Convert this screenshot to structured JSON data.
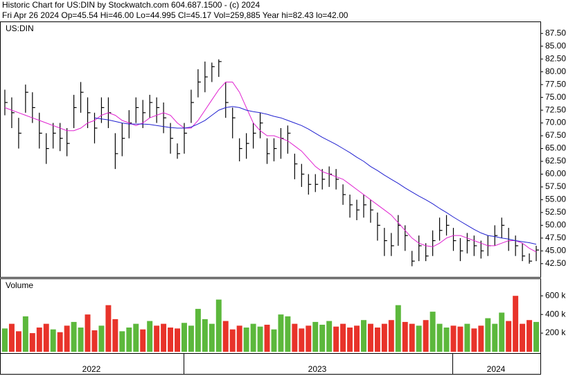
{
  "header": {
    "title": "Historic Chart for US:DIN by Stockwatch.com 604.687.1500 - (c) 2024",
    "quote": "Fri Apr 26 2024   Op=45.54  Hi=46.00  Lo=44.995  Cl=45.17  Vol=259,885  Year hi=82.43  lo=42.00"
  },
  "time_axis": {
    "labels": [
      "2022",
      "2023",
      "2024"
    ]
  },
  "chart_data": [
    {
      "type": "ohlc",
      "title": "US:DIN",
      "color": "#000000",
      "high": [
        76.5,
        75,
        71,
        77.5,
        76,
        72,
        68,
        70,
        70,
        69,
        75.5,
        78,
        75,
        72,
        75,
        75,
        68,
        70,
        72.5,
        75,
        74.5,
        75.5,
        75,
        74,
        70,
        66,
        70,
        76.5,
        80.5,
        82,
        81.8,
        82.43,
        78,
        73,
        67,
        68,
        70,
        72,
        67,
        67,
        69,
        69.5,
        64,
        62,
        60,
        60,
        61,
        61.5,
        61,
        58,
        56,
        55,
        56,
        55,
        52.5,
        49.5,
        48.5,
        52,
        50,
        45,
        48,
        46.5,
        49,
        51.5,
        52,
        49.5,
        47.5,
        48.5,
        48,
        47,
        48,
        50,
        51.5,
        49.5,
        48,
        46.5,
        44.5,
        46
      ],
      "low": [
        71.5,
        69,
        65,
        72,
        70,
        65,
        62,
        65,
        64.5,
        63.5,
        69,
        72,
        69,
        66,
        70,
        69,
        61,
        63.5,
        67,
        70,
        69,
        71,
        70,
        68,
        64,
        63,
        64,
        70,
        75,
        76,
        78,
        79,
        71,
        67,
        62.5,
        63,
        65,
        67,
        62,
        62.5,
        63,
        64,
        59,
        57.5,
        56,
        56.5,
        57,
        57.5,
        57,
        54,
        51.5,
        51,
        51.5,
        50.5,
        47,
        44,
        44,
        46,
        45,
        42,
        43,
        43,
        44,
        47,
        48,
        45,
        43,
        44.5,
        44,
        43.5,
        44,
        46,
        47.5,
        45,
        44,
        43,
        42.5,
        43
      ],
      "close": [
        74,
        72,
        68,
        76,
        73,
        68,
        65,
        68,
        67,
        66,
        73,
        76,
        72,
        69,
        73,
        72,
        64,
        67,
        70,
        73,
        72,
        74,
        73,
        71,
        67,
        64,
        68,
        74,
        78,
        79,
        81,
        82,
        74,
        71,
        65,
        66,
        68,
        70,
        64,
        65,
        67,
        68,
        62,
        60,
        58,
        58,
        59,
        60,
        59,
        56,
        54,
        53,
        54,
        53,
        50,
        47,
        46,
        50,
        48,
        43,
        46,
        44,
        47,
        49,
        50,
        47,
        45,
        47,
        46,
        45,
        46,
        48,
        50,
        47,
        46,
        44,
        43,
        45.17
      ],
      "ma": [
        {
          "color": "#e020d0",
          "values": [
            73,
            72.5,
            72,
            71.5,
            71,
            70.5,
            70,
            69.5,
            69,
            68.5,
            68.5,
            69,
            70,
            70.5,
            71.5,
            72,
            71.5,
            70.5,
            70,
            69.5,
            70,
            71,
            71.5,
            72,
            71.5,
            70,
            69,
            69,
            70.5,
            72.5,
            74.5,
            76.5,
            78,
            78,
            76,
            73,
            70,
            68.5,
            67.5,
            67.5,
            67,
            66.5,
            65.5,
            64.5,
            63,
            61.5,
            60.5,
            60,
            59.5,
            59,
            58,
            57,
            56,
            55,
            54,
            53,
            52,
            50.5,
            49,
            47.5,
            46.5,
            46,
            45.8,
            46.5,
            47.5,
            48,
            48,
            47.5,
            47,
            46.5,
            46,
            46,
            46.5,
            47,
            47,
            46.5,
            45.5,
            44.8
          ]
        },
        {
          "color": "#2020d0",
          "values": [
            null,
            null,
            null,
            null,
            null,
            null,
            null,
            null,
            null,
            null,
            null,
            null,
            null,
            71,
            70.8,
            70.6,
            70.3,
            70,
            69.8,
            69.8,
            69.8,
            69.7,
            69.5,
            69.3,
            69.1,
            69,
            69,
            69.2,
            69.8,
            70.5,
            71.5,
            72.5,
            73,
            73.2,
            73,
            72.5,
            72.2,
            72,
            71.7,
            71.3,
            71,
            70.5,
            70,
            69.5,
            68.8,
            68,
            67.2,
            66.5,
            65.8,
            65,
            64.2,
            63.3,
            62.5,
            61.5,
            60.7,
            59.8,
            59,
            58.2,
            57.3,
            56.5,
            55.7,
            55,
            54.2,
            53.3,
            52.5,
            51.6,
            50.8,
            50,
            49.2,
            48.5,
            48,
            47.8,
            47.5,
            47.3,
            47,
            46.8,
            46.6,
            46.3
          ]
        }
      ],
      "ylim": [
        39.9,
        89.7
      ],
      "yticks": [
        {
          "value": 42.5,
          "label": "42.50"
        },
        {
          "value": 45,
          "label": "45.00"
        },
        {
          "value": 47.5,
          "label": "47.50"
        },
        {
          "value": 50,
          "label": "50.00"
        },
        {
          "value": 52.5,
          "label": "52.50"
        },
        {
          "value": 55,
          "label": "55.00"
        },
        {
          "value": 57.5,
          "label": "57.50"
        },
        {
          "value": 60,
          "label": "60.00"
        },
        {
          "value": 62.5,
          "label": "62.50"
        },
        {
          "value": 65,
          "label": "65.00"
        },
        {
          "value": 67.5,
          "label": "67.50"
        },
        {
          "value": 70,
          "label": "70.00"
        },
        {
          "value": 72.5,
          "label": "72.50"
        },
        {
          "value": 75,
          "label": "75.00"
        },
        {
          "value": 77.5,
          "label": "77.50"
        },
        {
          "value": 80,
          "label": "80.00"
        },
        {
          "value": 82.5,
          "label": "82.50"
        },
        {
          "value": 85,
          "label": "85.00"
        },
        {
          "value": 87.5,
          "label": "87.50"
        }
      ]
    },
    {
      "type": "bar",
      "title": "Volume",
      "up_color": "#5cb83c",
      "down_color": "#e8332a",
      "values": [
        250000,
        300000,
        220000,
        380000,
        200000,
        260000,
        300000,
        240000,
        210000,
        280000,
        320000,
        260000,
        400000,
        230000,
        280000,
        500000,
        350000,
        220000,
        260000,
        300000,
        240000,
        330000,
        280000,
        300000,
        260000,
        250000,
        310000,
        280000,
        460000,
        350000,
        300000,
        560000,
        330000,
        240000,
        280000,
        260000,
        300000,
        270000,
        290000,
        240000,
        400000,
        380000,
        300000,
        250000,
        280000,
        320000,
        290000,
        330000,
        270000,
        300000,
        260000,
        280000,
        340000,
        300000,
        260000,
        300000,
        340000,
        500000,
        320000,
        300000,
        280000,
        340000,
        430000,
        300000,
        260000,
        280000,
        270000,
        300000,
        250000,
        280000,
        360000,
        300000,
        420000,
        330000,
        600000,
        300000,
        340000,
        320000
      ],
      "ylim": [
        0,
        780000
      ],
      "yticks": [
        {
          "value": 200000,
          "label": "200 k"
        },
        {
          "value": 400000,
          "label": "400 k"
        },
        {
          "value": 600000,
          "label": "600 k"
        }
      ]
    }
  ]
}
